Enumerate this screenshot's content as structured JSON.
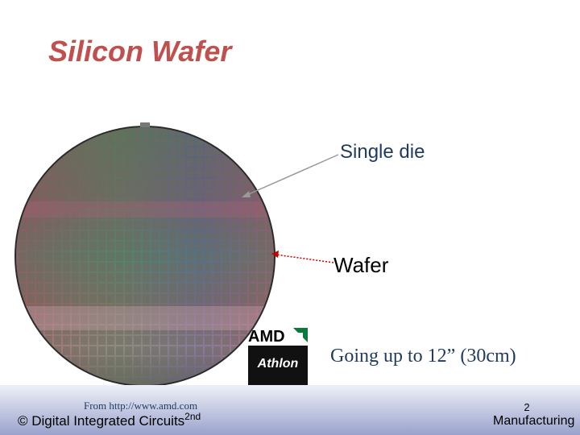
{
  "header": {
    "title": "Silicon Wafer"
  },
  "labels": {
    "die": "Single die",
    "wafer": "Wafer",
    "size": "Going up to 12” (30cm)"
  },
  "logo": {
    "brand": "AMD",
    "product": "Athlon"
  },
  "footer": {
    "source": "From http://www.amd.com",
    "course": "© Digital Integrated Circuits",
    "edition": "2nd",
    "page": "2",
    "chapter": "Manufacturing"
  }
}
